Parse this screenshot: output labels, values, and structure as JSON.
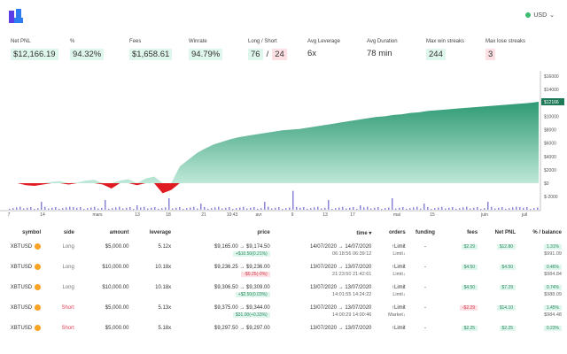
{
  "header": {
    "currency": "USD"
  },
  "stats": [
    {
      "label": "Net PNL",
      "value": "$12,166.19",
      "tone": "g"
    },
    {
      "label": "%",
      "value": "94.32%",
      "tone": "g"
    },
    {
      "label": "Fees",
      "value": "$1,658.61",
      "tone": "g"
    },
    {
      "label": "Winrate",
      "value": "94.79%",
      "tone": "g"
    },
    {
      "label": "Long / Short",
      "long": "76",
      "sep": "/",
      "short": "24"
    },
    {
      "label": "Avg Leverage",
      "value": "6x",
      "tone": ""
    },
    {
      "label": "Avg Duration",
      "value": "78 min",
      "tone": ""
    },
    {
      "label": "Max win streaks",
      "value": "244",
      "tone": "g"
    },
    {
      "label": "Max lose streaks",
      "value": "3",
      "tone": "r"
    }
  ],
  "chart_data": {
    "type": "area",
    "y_ticks": [
      "$16000",
      "$14000",
      "$12166",
      "$10000",
      "$8000",
      "$6000",
      "$4000",
      "$2000",
      "$0",
      "$-2000"
    ],
    "ylim": [
      -2000,
      16000
    ],
    "current_value": 12166,
    "x_ticks": [
      "7",
      "14",
      "mars",
      "13",
      "18",
      "21",
      "10:43",
      "avr",
      "9",
      "13",
      "17",
      "mai",
      "15",
      "juin",
      "juil"
    ],
    "values": [
      0,
      0,
      -300,
      -400,
      -200,
      200,
      300,
      -200,
      100,
      400,
      500,
      -200,
      -800,
      400,
      600,
      -300,
      700,
      1000,
      -1500,
      -1000,
      2500,
      3500,
      4500,
      5200,
      5800,
      6200,
      6600,
      6900,
      7100,
      7300,
      7500,
      7700,
      7900,
      8000,
      8100,
      8300,
      8500,
      8700,
      8900,
      9100,
      9300,
      9500,
      9700,
      9900,
      10000,
      10200,
      10300,
      10500,
      10600,
      10800,
      10900,
      11000,
      11100,
      11200,
      11300,
      11400,
      11500,
      11600,
      11700,
      11800,
      11900,
      12000,
      12166
    ],
    "colors": {
      "positive": "#2e9a74",
      "negative": "#e11b22",
      "volume": "#8a86d8"
    }
  },
  "table": {
    "headers": [
      "symbol",
      "side",
      "amount",
      "leverage",
      "price",
      "time ▾",
      "orders",
      "funding",
      "fees",
      "Net PNL",
      "% / balance"
    ],
    "rows": [
      {
        "symbol": "XBTUSD",
        "side": "Long",
        "amount": "$5,000.00",
        "leverage": "5.12x",
        "price": "$9,165.00 → $9,174.50",
        "pchg": "+$10.50(0.21%)",
        "pt": "g",
        "time": "14/07/2020 → 14/07/2020",
        "times": "06:18:56      06:39:12",
        "orders": "↑Limit",
        "orders2": "Limit↓",
        "funding": "-",
        "fees": "$2.29",
        "ft": "g",
        "pnl": "$12.80",
        "nt": "g",
        "pct": "1.31%",
        "bal": "$991.09"
      },
      {
        "symbol": "XBTUSD",
        "side": "Long",
        "amount": "$10,000.00",
        "leverage": "10.18x",
        "price": "$9,236.25 → $9,236.00",
        "pchg": "-$0.25(-0%)",
        "pt": "r",
        "time": "13/07/2020 → 13/07/2020",
        "times": "21:23:50      21:42:61",
        "orders": "↑Limit",
        "orders2": "Limit↓",
        "funding": "-",
        "fees": "$4.50",
        "ft": "g",
        "pnl": "$4.50",
        "nt": "g",
        "pct": "0.46%",
        "bal": "$984.84"
      },
      {
        "symbol": "XBTUSD",
        "side": "Long",
        "amount": "$10,000.00",
        "leverage": "10.18x",
        "price": "$9,306.50 → $9,309.00",
        "pchg": "+$2.50(0.03%)",
        "pt": "g",
        "time": "13/07/2020 → 13/07/2020",
        "times": "14:01:55      14:24:22",
        "orders": "↑Limit",
        "orders2": "Limit↓",
        "funding": "-",
        "fees": "$4.50",
        "ft": "g",
        "pnl": "$7.29",
        "nt": "g",
        "pct": "0.74%",
        "bal": "$988.09"
      },
      {
        "symbol": "XBTUSD",
        "side": "Short",
        "amount": "$5,000.00",
        "leverage": "5.13x",
        "price": "$9,375.00 → $9,344.00",
        "pchg": "$31.00(+0.33%)",
        "pt": "g",
        "time": "13/07/2020 → 13/07/2020",
        "times": "14:00:29      14:00:46",
        "orders": "↑Limit",
        "orders2": "Market↓",
        "funding": "-",
        "fees": "-$2.29",
        "ft": "r",
        "pnl": "$14.10",
        "nt": "g",
        "pct": "1.45%",
        "bal": "$984.48"
      },
      {
        "symbol": "XBTUSD",
        "side": "Short",
        "amount": "$5,000.00",
        "leverage": "5.18x",
        "price": "$9,297.50 → $9,297.00",
        "pchg": "",
        "pt": "g",
        "time": "13/07/2020 → 13/07/2020",
        "times": "",
        "orders": "↑Limit",
        "orders2": "",
        "funding": "-",
        "fees": "$2.25",
        "ft": "g",
        "pnl": "$2.25",
        "nt": "g",
        "pct": "0.23%",
        "bal": ""
      }
    ]
  }
}
